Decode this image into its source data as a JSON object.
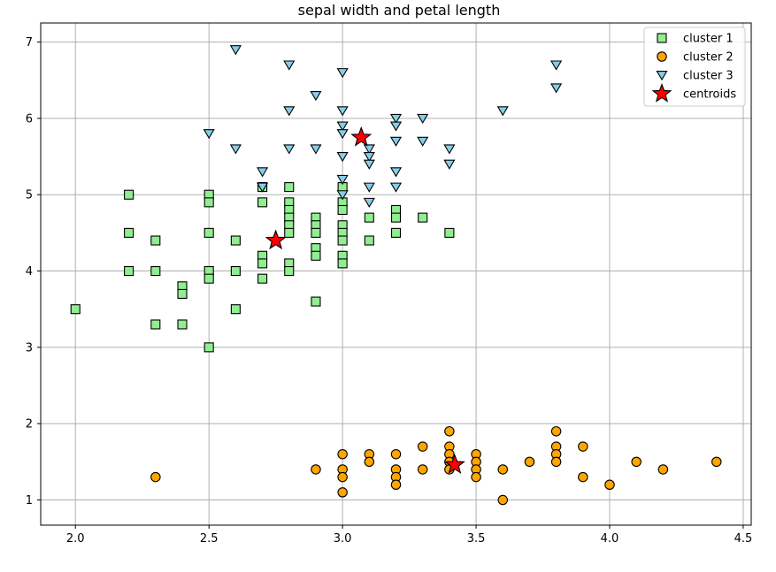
{
  "chart_data": {
    "type": "scatter",
    "title": "sepal width and  petal length",
    "xlabel": "",
    "ylabel": "",
    "xlim": [
      1.87,
      4.53
    ],
    "ylim": [
      0.67,
      7.25
    ],
    "xticks": [
      2.0,
      2.5,
      3.0,
      3.5,
      4.0,
      4.5
    ],
    "xtick_labels": [
      "2.0",
      "2.5",
      "3.0",
      "3.5",
      "4.0",
      "4.5"
    ],
    "yticks": [
      1,
      2,
      3,
      4,
      5,
      6,
      7
    ],
    "ytick_labels": [
      "1",
      "2",
      "3",
      "4",
      "5",
      "6",
      "7"
    ],
    "grid": true,
    "legend_position": "top-right",
    "series": [
      {
        "name": "cluster 1",
        "marker": "square",
        "color": "#90ee90",
        "points": [
          [
            2.0,
            3.5
          ],
          [
            2.2,
            5.0
          ],
          [
            2.2,
            4.5
          ],
          [
            2.2,
            4.0
          ],
          [
            2.3,
            4.4
          ],
          [
            2.3,
            4.0
          ],
          [
            2.3,
            3.3
          ],
          [
            2.4,
            3.8
          ],
          [
            2.4,
            3.7
          ],
          [
            2.4,
            3.3
          ],
          [
            2.5,
            5.0
          ],
          [
            2.5,
            4.9
          ],
          [
            2.5,
            4.5
          ],
          [
            2.5,
            4.0
          ],
          [
            2.5,
            3.9
          ],
          [
            2.5,
            3.0
          ],
          [
            2.6,
            4.4
          ],
          [
            2.6,
            4.0
          ],
          [
            2.6,
            3.5
          ],
          [
            2.7,
            5.1
          ],
          [
            2.7,
            4.9
          ],
          [
            2.7,
            4.2
          ],
          [
            2.7,
            4.1
          ],
          [
            2.7,
            3.9
          ],
          [
            2.8,
            5.1
          ],
          [
            2.8,
            4.9
          ],
          [
            2.8,
            4.8
          ],
          [
            2.8,
            4.7
          ],
          [
            2.8,
            4.6
          ],
          [
            2.8,
            4.5
          ],
          [
            2.8,
            4.1
          ],
          [
            2.8,
            4.0
          ],
          [
            2.9,
            4.7
          ],
          [
            2.9,
            4.6
          ],
          [
            2.9,
            4.5
          ],
          [
            2.9,
            4.3
          ],
          [
            2.9,
            4.2
          ],
          [
            2.9,
            3.6
          ],
          [
            3.0,
            5.1
          ],
          [
            3.0,
            4.9
          ],
          [
            3.0,
            4.8
          ],
          [
            3.0,
            4.6
          ],
          [
            3.0,
            4.5
          ],
          [
            3.0,
            4.4
          ],
          [
            3.0,
            4.2
          ],
          [
            3.0,
            4.1
          ],
          [
            3.1,
            4.7
          ],
          [
            3.1,
            4.4
          ],
          [
            3.2,
            4.8
          ],
          [
            3.2,
            4.7
          ],
          [
            3.2,
            4.5
          ],
          [
            3.3,
            4.7
          ],
          [
            3.4,
            4.5
          ]
        ]
      },
      {
        "name": "cluster 2",
        "marker": "circle",
        "color": "#ffa500",
        "points": [
          [
            2.3,
            1.3
          ],
          [
            2.9,
            1.4
          ],
          [
            3.0,
            1.6
          ],
          [
            3.0,
            1.4
          ],
          [
            3.0,
            1.3
          ],
          [
            3.0,
            1.1
          ],
          [
            3.1,
            1.6
          ],
          [
            3.1,
            1.5
          ],
          [
            3.2,
            1.6
          ],
          [
            3.2,
            1.4
          ],
          [
            3.2,
            1.3
          ],
          [
            3.2,
            1.2
          ],
          [
            3.3,
            1.7
          ],
          [
            3.3,
            1.4
          ],
          [
            3.4,
            1.9
          ],
          [
            3.4,
            1.7
          ],
          [
            3.4,
            1.6
          ],
          [
            3.4,
            1.5
          ],
          [
            3.4,
            1.4
          ],
          [
            3.5,
            1.6
          ],
          [
            3.5,
            1.5
          ],
          [
            3.5,
            1.4
          ],
          [
            3.5,
            1.3
          ],
          [
            3.6,
            1.4
          ],
          [
            3.6,
            1.0
          ],
          [
            3.7,
            1.5
          ],
          [
            3.8,
            1.9
          ],
          [
            3.8,
            1.7
          ],
          [
            3.8,
            1.6
          ],
          [
            3.8,
            1.5
          ],
          [
            3.9,
            1.7
          ],
          [
            3.9,
            1.3
          ],
          [
            4.0,
            1.2
          ],
          [
            4.1,
            1.5
          ],
          [
            4.2,
            1.4
          ],
          [
            4.4,
            1.5
          ]
        ]
      },
      {
        "name": "cluster 3",
        "marker": "triangle-down",
        "color": "#87ceeb",
        "points": [
          [
            2.5,
            5.8
          ],
          [
            2.6,
            6.9
          ],
          [
            2.6,
            5.6
          ],
          [
            2.7,
            5.3
          ],
          [
            2.7,
            5.1
          ],
          [
            2.8,
            6.7
          ],
          [
            2.8,
            6.1
          ],
          [
            2.8,
            5.6
          ],
          [
            2.9,
            6.3
          ],
          [
            2.9,
            5.6
          ],
          [
            3.0,
            6.6
          ],
          [
            3.0,
            6.1
          ],
          [
            3.0,
            5.9
          ],
          [
            3.0,
            5.8
          ],
          [
            3.0,
            5.5
          ],
          [
            3.0,
            5.2
          ],
          [
            3.0,
            5.0
          ],
          [
            3.1,
            5.6
          ],
          [
            3.1,
            5.5
          ],
          [
            3.1,
            5.4
          ],
          [
            3.1,
            5.1
          ],
          [
            3.1,
            4.9
          ],
          [
            3.2,
            6.0
          ],
          [
            3.2,
            5.9
          ],
          [
            3.2,
            5.7
          ],
          [
            3.2,
            5.3
          ],
          [
            3.2,
            5.1
          ],
          [
            3.3,
            6.0
          ],
          [
            3.3,
            5.7
          ],
          [
            3.4,
            5.6
          ],
          [
            3.4,
            5.4
          ],
          [
            3.6,
            6.1
          ],
          [
            3.8,
            6.7
          ],
          [
            3.8,
            6.4
          ]
        ]
      },
      {
        "name": "centroids",
        "marker": "star",
        "color": "#ff0000",
        "points": [
          [
            2.75,
            4.4
          ],
          [
            3.07,
            5.75
          ],
          [
            3.42,
            1.46
          ]
        ]
      }
    ]
  }
}
